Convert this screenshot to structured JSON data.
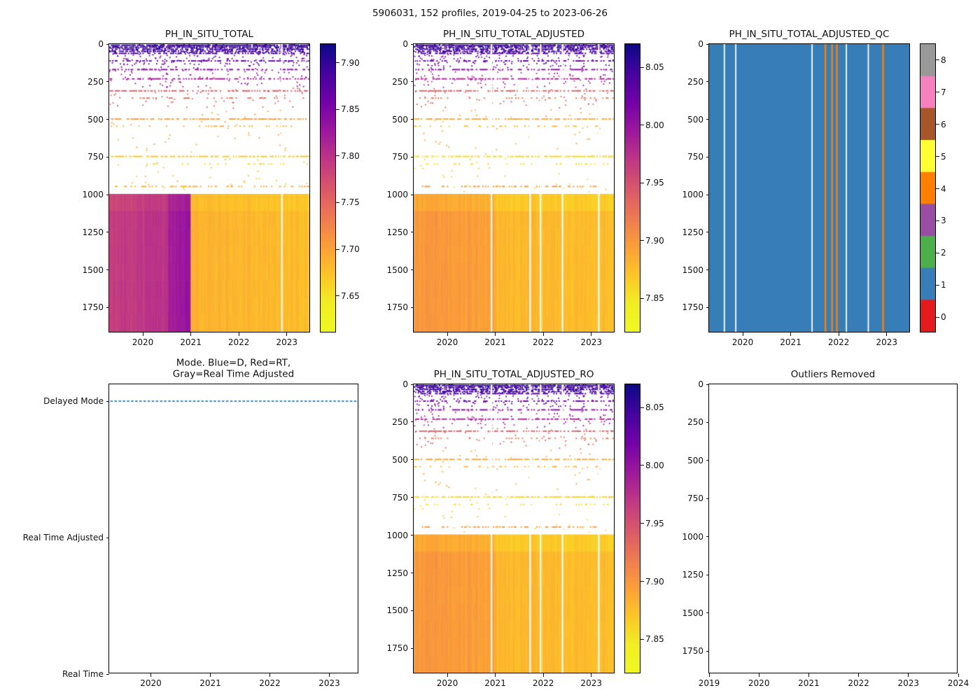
{
  "figure": {
    "title": "5906031, 152 profiles, 2019-04-25 to 2023-06-26"
  },
  "chart_data": [
    {
      "id": "ph_in_situ_total",
      "type": "heatmap",
      "title": "PH_IN_SITU_TOTAL",
      "xlabel": "",
      "ylabel": "",
      "x_range": [
        2019.3,
        2023.5
      ],
      "y_range": [
        0,
        1920
      ],
      "y_down": true,
      "x_ticks": [
        2020,
        2021,
        2022,
        2023
      ],
      "x_tick_labels": [
        "2020",
        "2021",
        "2022",
        "2023"
      ],
      "y_ticks": [
        0,
        250,
        500,
        750,
        1000,
        1250,
        1500,
        1750
      ],
      "y_tick_labels": [
        "0",
        "250",
        "500",
        "750",
        "1000",
        "1250",
        "1500",
        "1750"
      ],
      "colorbar": {
        "range": [
          7.61,
          7.92
        ],
        "ticks": [
          7.65,
          7.7,
          7.75,
          7.8,
          7.85,
          7.9
        ],
        "tick_labels": [
          "7.65",
          "7.70",
          "7.75",
          "7.80",
          "7.85",
          "7.90"
        ],
        "cmap": "plasma_reversed"
      },
      "profiles": {
        "start": 2019.32,
        "end": 2023.48,
        "count": 152
      },
      "deep_block": {
        "depth_range": [
          1000,
          1920
        ],
        "col_noise": 0.012,
        "chunk_noise": 0.006,
        "top_lighten": 0.008,
        "segments": [
          {
            "t0": 2019.3,
            "t1": 2020.55,
            "v0": 7.787,
            "v1": 7.802
          },
          {
            "t0": 2020.55,
            "t1": 2021.02,
            "v0": 7.822,
            "v1": 7.832
          },
          {
            "t0": 2021.02,
            "t1": 2023.51,
            "v0": 7.687,
            "v1": 7.678
          }
        ]
      },
      "rows": [
        {
          "d": 8,
          "v": 7.9,
          "density": 0.92
        },
        {
          "d": 20,
          "v": 7.895,
          "density": 0.72
        },
        {
          "d": 34,
          "v": 7.892,
          "density": 0.55
        },
        {
          "d": 48,
          "v": 7.89,
          "density": 0.42
        },
        {
          "d": 62,
          "v": 7.885,
          "density": 0.5
        },
        {
          "d": 112,
          "v": 7.872,
          "density": 0.45
        },
        {
          "d": 170,
          "v": 7.845,
          "density": 0.5
        },
        {
          "d": 232,
          "v": 7.82,
          "density": 0.55
        },
        {
          "d": 312,
          "v": 7.762,
          "density": 0.62
        },
        {
          "d": 360,
          "v": 7.74,
          "density": 0.2
        },
        {
          "d": 500,
          "v": 7.702,
          "density": 0.68
        },
        {
          "d": 548,
          "v": 7.69,
          "density": 0.18
        },
        {
          "d": 750,
          "v": 7.672,
          "density": 0.72
        },
        {
          "d": 800,
          "v": 7.66,
          "density": 0.15
        },
        {
          "d": 950,
          "v": 7.69,
          "density": 0.38
        }
      ],
      "scatter": [
        {
          "d0": 3,
          "d1": 58,
          "n": 420,
          "v": 7.894,
          "j": 0.02
        },
        {
          "d0": 58,
          "d1": 160,
          "n": 130,
          "v": 7.868,
          "j": 0.02
        },
        {
          "d0": 160,
          "d1": 290,
          "n": 90,
          "v": 7.828,
          "j": 0.025
        },
        {
          "d0": 290,
          "d1": 430,
          "n": 55,
          "v": 7.76,
          "j": 0.02
        },
        {
          "d0": 430,
          "d1": 720,
          "n": 40,
          "v": 7.7,
          "j": 0.015
        },
        {
          "d0": 720,
          "d1": 985,
          "n": 35,
          "v": 7.675,
          "j": 0.012
        }
      ],
      "gaps": [
        2022.92
      ],
      "seed": 11
    },
    {
      "id": "ph_in_situ_total_adjusted",
      "type": "heatmap",
      "title": "PH_IN_SITU_TOTAL_ADJUSTED",
      "xlabel": "",
      "ylabel": "",
      "x_range": [
        2019.3,
        2023.5
      ],
      "y_range": [
        0,
        1920
      ],
      "y_down": true,
      "x_ticks": [
        2020,
        2021,
        2022,
        2023
      ],
      "x_tick_labels": [
        "2020",
        "2021",
        "2022",
        "2023"
      ],
      "y_ticks": [
        0,
        250,
        500,
        750,
        1000,
        1250,
        1500,
        1750
      ],
      "y_tick_labels": [
        "0",
        "250",
        "500",
        "750",
        "1000",
        "1250",
        "1500",
        "1750"
      ],
      "colorbar": {
        "range": [
          7.82,
          8.07
        ],
        "ticks": [
          7.85,
          7.9,
          7.95,
          8.0,
          8.05
        ],
        "tick_labels": [
          "7.85",
          "7.90",
          "7.95",
          "8.00",
          "8.05"
        ],
        "cmap": "plasma_reversed"
      },
      "profiles": {
        "start": 2019.32,
        "end": 2023.48,
        "count": 152
      },
      "deep_block": {
        "depth_range": [
          1000,
          1920
        ],
        "col_noise": 0.01,
        "chunk_noise": 0.005,
        "top_lighten": 0.01,
        "segments": [
          {
            "t0": 2019.3,
            "t1": 2021.02,
            "v0": 7.9,
            "v1": 7.893
          },
          {
            "t0": 2021.02,
            "t1": 2023.51,
            "v0": 7.878,
            "v1": 7.874
          }
        ]
      },
      "rows": [
        {
          "d": 8,
          "v": 8.052,
          "density": 0.92
        },
        {
          "d": 20,
          "v": 8.048,
          "density": 0.72
        },
        {
          "d": 34,
          "v": 8.045,
          "density": 0.55
        },
        {
          "d": 48,
          "v": 8.042,
          "density": 0.42
        },
        {
          "d": 62,
          "v": 8.038,
          "density": 0.5
        },
        {
          "d": 112,
          "v": 8.028,
          "density": 0.45
        },
        {
          "d": 170,
          "v": 8.005,
          "density": 0.5
        },
        {
          "d": 232,
          "v": 7.985,
          "density": 0.55
        },
        {
          "d": 312,
          "v": 7.938,
          "density": 0.62
        },
        {
          "d": 360,
          "v": 7.92,
          "density": 0.2
        },
        {
          "d": 500,
          "v": 7.888,
          "density": 0.68
        },
        {
          "d": 548,
          "v": 7.878,
          "density": 0.18
        },
        {
          "d": 750,
          "v": 7.86,
          "density": 0.72
        },
        {
          "d": 800,
          "v": 7.852,
          "density": 0.15
        },
        {
          "d": 950,
          "v": 7.9,
          "density": 0.38
        }
      ],
      "scatter": [
        {
          "d0": 3,
          "d1": 58,
          "n": 420,
          "v": 8.048,
          "j": 0.018
        },
        {
          "d0": 58,
          "d1": 160,
          "n": 130,
          "v": 8.025,
          "j": 0.018
        },
        {
          "d0": 160,
          "d1": 290,
          "n": 90,
          "v": 7.99,
          "j": 0.022
        },
        {
          "d0": 290,
          "d1": 430,
          "n": 55,
          "v": 7.94,
          "j": 0.018
        },
        {
          "d0": 430,
          "d1": 720,
          "n": 40,
          "v": 7.885,
          "j": 0.012
        },
        {
          "d0": 720,
          "d1": 985,
          "n": 35,
          "v": 7.862,
          "j": 0.01
        }
      ],
      "gaps": [
        2020.93,
        2021.74,
        2021.96,
        2022.42,
        2023.18
      ],
      "seed": 22
    },
    {
      "id": "ph_in_situ_total_adjusted_qc",
      "type": "heatmap",
      "title": "PH_IN_SITU_TOTAL_ADJUSTED_QC",
      "xlabel": "",
      "ylabel": "",
      "x_range": [
        2019.3,
        2023.5
      ],
      "y_range": [
        0,
        1920
      ],
      "y_down": true,
      "x_ticks": [
        2020,
        2021,
        2022,
        2023
      ],
      "x_tick_labels": [
        "2020",
        "2021",
        "2022",
        "2023"
      ],
      "y_ticks": [
        0,
        250,
        500,
        750,
        1000,
        1250,
        1500,
        1750
      ],
      "y_tick_labels": [
        "0",
        "250",
        "500",
        "750",
        "1000",
        "1250",
        "1500",
        "1750"
      ],
      "background_qc": 1,
      "qc4_columns": [
        2021.74,
        2021.88,
        2021.98,
        2022.95
      ],
      "gaps": [
        2019.62,
        2019.86,
        2021.46,
        2022.18,
        2022.64
      ],
      "colorbar": {
        "ticks": [
          0,
          1,
          2,
          3,
          4,
          5,
          6,
          7,
          8
        ],
        "tick_labels": [
          "0",
          "1",
          "2",
          "3",
          "4",
          "5",
          "6",
          "7",
          "8"
        ],
        "colors": [
          "#e41a1c",
          "#377eb8",
          "#4daf4a",
          "#984ea3",
          "#ff7f00",
          "#ffff33",
          "#a65628",
          "#f781bf",
          "#999999"
        ]
      }
    },
    {
      "id": "mode",
      "type": "line",
      "title": "Mode. Blue=D, Red=RT,\nGray=Real Time Adjusted",
      "xlabel": "",
      "ylabel": "",
      "x_range": [
        2019.3,
        2023.5
      ],
      "y_range": [
        0,
        2.124
      ],
      "y_down": false,
      "x_ticks": [
        2020,
        2021,
        2022,
        2023
      ],
      "x_tick_labels": [
        "2020",
        "2021",
        "2022",
        "2023"
      ],
      "y_ticks": [
        2,
        1,
        0
      ],
      "y_tick_labels": [
        "Delayed Mode",
        "Real Time Adjusted",
        "Real Time"
      ],
      "legend_note": "Blue=D, Red=RT, Gray=Real Time Adjusted",
      "line": {
        "value": 2,
        "value_label": "Delayed Mode",
        "x_start": 2019.32,
        "x_end": 2023.48,
        "color": "#1f77b4",
        "style": "dashed"
      }
    },
    {
      "id": "ph_in_situ_total_adjusted_ro",
      "type": "heatmap",
      "title": "PH_IN_SITU_TOTAL_ADJUSTED_RO",
      "xlabel": "",
      "ylabel": "",
      "x_range": [
        2019.3,
        2023.5
      ],
      "y_range": [
        0,
        1920
      ],
      "y_down": true,
      "x_ticks": [
        2020,
        2021,
        2022,
        2023
      ],
      "x_tick_labels": [
        "2020",
        "2021",
        "2022",
        "2023"
      ],
      "y_ticks": [
        0,
        250,
        500,
        750,
        1000,
        1250,
        1500,
        1750
      ],
      "y_tick_labels": [
        "0",
        "250",
        "500",
        "750",
        "1000",
        "1250",
        "1500",
        "1750"
      ],
      "colorbar": {
        "range": [
          7.82,
          8.07
        ],
        "ticks": [
          7.85,
          7.9,
          7.95,
          8.0,
          8.05
        ],
        "tick_labels": [
          "7.85",
          "7.90",
          "7.95",
          "8.00",
          "8.05"
        ],
        "cmap": "plasma_reversed"
      },
      "profiles": {
        "start": 2019.32,
        "end": 2023.48,
        "count": 152
      },
      "deep_block": {
        "depth_range": [
          1000,
          1920
        ],
        "col_noise": 0.01,
        "chunk_noise": 0.005,
        "top_lighten": 0.01,
        "segments": [
          {
            "t0": 2019.3,
            "t1": 2021.02,
            "v0": 7.9,
            "v1": 7.893
          },
          {
            "t0": 2021.02,
            "t1": 2023.51,
            "v0": 7.878,
            "v1": 7.874
          }
        ]
      },
      "rows": [
        {
          "d": 8,
          "v": 8.052,
          "density": 0.92
        },
        {
          "d": 20,
          "v": 8.048,
          "density": 0.72
        },
        {
          "d": 34,
          "v": 8.045,
          "density": 0.55
        },
        {
          "d": 48,
          "v": 8.042,
          "density": 0.42
        },
        {
          "d": 62,
          "v": 8.038,
          "density": 0.5
        },
        {
          "d": 112,
          "v": 8.028,
          "density": 0.45
        },
        {
          "d": 170,
          "v": 8.005,
          "density": 0.5
        },
        {
          "d": 232,
          "v": 7.985,
          "density": 0.55
        },
        {
          "d": 312,
          "v": 7.938,
          "density": 0.62
        },
        {
          "d": 360,
          "v": 7.92,
          "density": 0.2
        },
        {
          "d": 500,
          "v": 7.888,
          "density": 0.68
        },
        {
          "d": 548,
          "v": 7.878,
          "density": 0.18
        },
        {
          "d": 750,
          "v": 7.86,
          "density": 0.72
        },
        {
          "d": 800,
          "v": 7.852,
          "density": 0.15
        },
        {
          "d": 950,
          "v": 7.9,
          "density": 0.38
        }
      ],
      "scatter": [
        {
          "d0": 3,
          "d1": 58,
          "n": 420,
          "v": 8.048,
          "j": 0.018
        },
        {
          "d0": 58,
          "d1": 160,
          "n": 130,
          "v": 8.025,
          "j": 0.018
        },
        {
          "d0": 160,
          "d1": 290,
          "n": 90,
          "v": 7.99,
          "j": 0.022
        },
        {
          "d0": 290,
          "d1": 430,
          "n": 55,
          "v": 7.94,
          "j": 0.018
        },
        {
          "d0": 430,
          "d1": 720,
          "n": 40,
          "v": 7.885,
          "j": 0.012
        },
        {
          "d0": 720,
          "d1": 985,
          "n": 35,
          "v": 7.862,
          "j": 0.01
        }
      ],
      "gaps": [
        2020.93,
        2021.74,
        2021.96,
        2022.42,
        2023.18
      ],
      "seed": 22
    },
    {
      "id": "outliers_removed",
      "type": "empty",
      "title": "Outliers Removed",
      "xlabel": "",
      "ylabel": "",
      "x_range": [
        2019,
        2024
      ],
      "y_range": [
        0,
        1900
      ],
      "y_down": true,
      "x_ticks": [
        2019,
        2020,
        2021,
        2022,
        2023,
        2024
      ],
      "x_tick_labels": [
        "2019",
        "2020",
        "2021",
        "2022",
        "2023",
        "2024"
      ],
      "y_ticks": [
        0,
        250,
        500,
        750,
        1000,
        1250,
        1500,
        1750
      ],
      "y_tick_labels": [
        "0",
        "250",
        "500",
        "750",
        "1000",
        "1250",
        "1500",
        "1750"
      ]
    }
  ]
}
